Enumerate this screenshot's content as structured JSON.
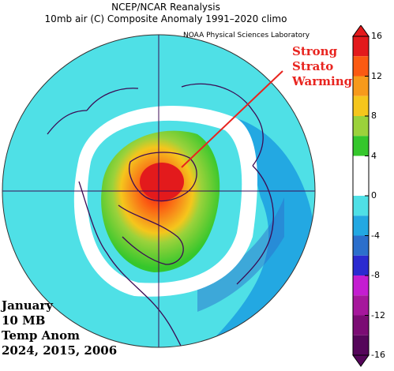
{
  "header": {
    "title_line1": "NCEP/NCAR Reanalysis",
    "title_line2": "10mb air (C) Composite Anomaly 1991–2020 climo",
    "lab_credit": "NOAA Physical Sciences Laboratory"
  },
  "annotation": {
    "lines": [
      "Strong",
      "Strato",
      "Warming"
    ],
    "color": "#e8241f"
  },
  "caption": {
    "lines": [
      "January",
      "10 MB",
      "Temp Anom",
      "2024, 2015, 2006"
    ]
  },
  "colorbar": {
    "ticks": [
      "16",
      "12",
      "8",
      "4",
      "0",
      "-4",
      "-8",
      "-12",
      "-16"
    ],
    "colors": [
      "#e31a1c",
      "#fb5a12",
      "#f79a1b",
      "#f5c61c",
      "#9bd23b",
      "#35c72c",
      "#ffffff",
      "#ffffff",
      "#4fe0e6",
      "#23a8e2",
      "#2c6fcc",
      "#2b2ad0",
      "#c41dd1",
      "#a6179c",
      "#7b0c74",
      "#55065a"
    ]
  },
  "map": {
    "projection": "north-polar-stereographic",
    "ocean_color": "#4fe0e6",
    "coast_color": "#3b0b54",
    "grid_color": "#3b0b54"
  }
}
